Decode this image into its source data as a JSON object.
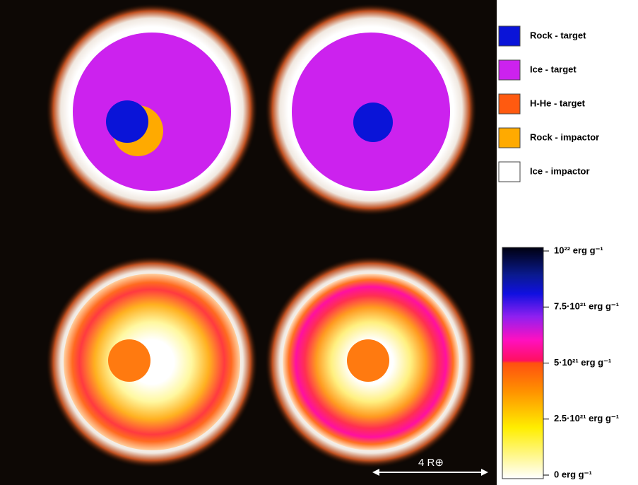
{
  "legend": [
    {
      "label": "Rock - target",
      "color": "#0a14d8"
    },
    {
      "label": "Ice - target",
      "color": "#cc22ee"
    },
    {
      "label": "H-He - target",
      "color": "#ff5a10"
    },
    {
      "label": "Rock - impactor",
      "color": "#ffaa00"
    },
    {
      "label": "Ice - impactor",
      "color": "#ffffff"
    }
  ],
  "colorbar": {
    "range": [
      0,
      1e+22
    ],
    "ticks": [
      {
        "value": 1e+22,
        "label": "10²² erg g⁻¹"
      },
      {
        "value": 7.5e+21,
        "label": "7.5·10²¹ erg g⁻¹"
      },
      {
        "value": 5e+21,
        "label": "5·10²¹ erg g⁻¹"
      },
      {
        "value": 2.5e+21,
        "label": "2.5·10²¹ erg g⁻¹"
      },
      {
        "value": 0,
        "label": "0 erg g⁻¹"
      }
    ]
  },
  "scale_bar": {
    "label": "4 R⊕"
  }
}
